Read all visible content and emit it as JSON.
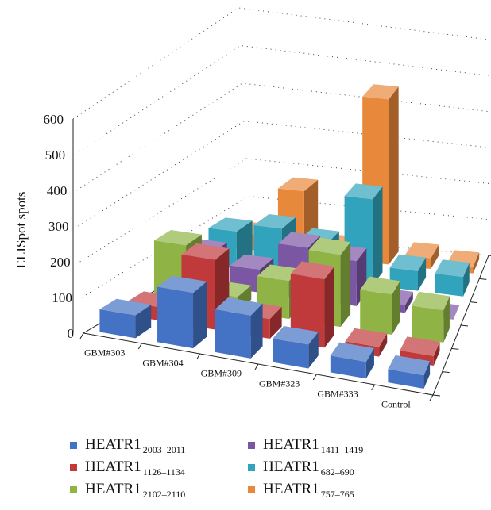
{
  "chart_data": {
    "type": "bar",
    "variant": "3d-grouped-depth",
    "ylabel": "ELISpot spots",
    "ylim": [
      0,
      600
    ],
    "yticks": [
      "0",
      "100",
      "200",
      "300",
      "400",
      "500",
      "600"
    ],
    "grid": "dotted",
    "legend_position": "bottom",
    "categories": [
      "GBM#303",
      "GBM#304",
      "GBM#309",
      "GBM#323",
      "GBM#333",
      "Control"
    ],
    "series": [
      {
        "name": "HEATR1",
        "subscript": "2003–2011",
        "color": "#4472c4",
        "values": [
          65,
          160,
          125,
          70,
          50,
          40
        ]
      },
      {
        "name": "HEATR1",
        "subscript": "1126–1134",
        "color": "#c0393b",
        "values": [
          40,
          210,
          60,
          210,
          30,
          30
        ]
      },
      {
        "name": "HEATR1",
        "subscript": "2102–2110",
        "color": "#8fb445",
        "values": [
          180,
          45,
          120,
          230,
          130,
          105
        ]
      },
      {
        "name": "HEATR1",
        "subscript": "1411–1419",
        "color": "#7b56a3",
        "values": [
          105,
          75,
          170,
          150,
          25,
          0
        ]
      },
      {
        "name": "HEATR1",
        "subscript": "682–690",
        "color": "#31a3bd",
        "values": [
          125,
          155,
          125,
          300,
          70,
          70
        ]
      },
      {
        "name": "HEATR1",
        "subscript": "757–765",
        "color": "#e8883b",
        "values": [
          55,
          230,
          40,
          605,
          40,
          25
        ]
      }
    ]
  }
}
